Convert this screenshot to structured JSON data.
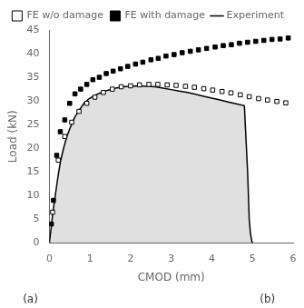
{
  "chart_data": {
    "type": "scatter",
    "xlabel": "CMOD (mm)",
    "ylabel": "Load (kN)",
    "xlim": [
      0,
      6
    ],
    "ylim": [
      0,
      45
    ],
    "xticks": [
      0,
      1,
      2,
      3,
      4,
      5,
      6
    ],
    "yticks": [
      0,
      5,
      10,
      15,
      20,
      25,
      30,
      35,
      40,
      45
    ],
    "grid": false,
    "legend": "top",
    "annotations": [
      "(a)",
      "(b)"
    ],
    "series": [
      {
        "name": "Experiment",
        "type": "line",
        "color": "black",
        "line_style": "solid",
        "x": [
          0.0,
          0.02,
          0.05,
          0.08,
          0.12,
          0.17,
          0.22,
          0.28,
          0.35,
          0.43,
          0.52,
          0.62,
          0.73,
          0.85,
          0.98,
          1.12,
          1.28,
          1.45,
          1.63,
          1.82,
          2.0,
          2.2,
          2.4,
          2.6,
          2.8,
          3.0,
          3.2,
          3.4,
          3.6,
          3.8,
          4.0,
          4.2,
          4.4,
          4.6,
          4.8,
          4.88,
          4.92,
          4.95,
          4.98,
          5.0
        ],
        "values": [
          0.0,
          1.5,
          3.5,
          6.0,
          8.5,
          11.5,
          14.5,
          17.5,
          20.0,
          22.5,
          24.5,
          26.5,
          28.0,
          29.5,
          30.5,
          31.2,
          31.8,
          32.3,
          32.7,
          33.0,
          33.1,
          33.2,
          33.1,
          33.0,
          32.7,
          32.4,
          32.1,
          31.8,
          31.4,
          31.0,
          30.6,
          30.2,
          29.8,
          29.4,
          29.0,
          15.0,
          5.0,
          2.0,
          0.5,
          0.0
        ]
      },
      {
        "name": "FE w/o damage",
        "type": "scatter",
        "color": "black",
        "marker": "square_open",
        "x": [
          0.08,
          0.22,
          0.38,
          0.55,
          0.73,
          0.92,
          1.12,
          1.33,
          1.55,
          1.77,
          2.0,
          2.22,
          2.45,
          2.67,
          2.9,
          3.12,
          3.35,
          3.57,
          3.8,
          4.02,
          4.25,
          4.47,
          4.7,
          4.92,
          5.15,
          5.37,
          5.6,
          5.82
        ],
        "values": [
          6.5,
          17.5,
          22.5,
          25.5,
          27.8,
          29.5,
          30.8,
          31.8,
          32.5,
          33.0,
          33.2,
          33.4,
          33.5,
          33.5,
          33.4,
          33.3,
          33.1,
          32.9,
          32.6,
          32.3,
          32.0,
          31.7,
          31.3,
          30.9,
          30.5,
          30.2,
          29.9,
          29.6
        ]
      },
      {
        "name": "FE with damage",
        "type": "scatter",
        "color": "black",
        "marker": "square",
        "x": [
          0.05,
          0.1,
          0.18,
          0.27,
          0.38,
          0.5,
          0.63,
          0.77,
          0.92,
          1.07,
          1.23,
          1.4,
          1.57,
          1.75,
          1.93,
          2.12,
          2.3,
          2.5,
          2.68,
          2.87,
          3.07,
          3.27,
          3.47,
          3.67,
          3.87,
          4.08,
          4.28,
          4.48,
          4.68,
          4.88,
          5.08,
          5.28,
          5.48,
          5.68,
          5.88
        ],
        "values": [
          4.0,
          9.0,
          18.5,
          23.5,
          26.0,
          29.5,
          31.5,
          32.5,
          33.5,
          34.5,
          35.0,
          35.8,
          36.3,
          36.8,
          37.3,
          37.8,
          38.2,
          38.7,
          39.0,
          39.5,
          39.8,
          40.2,
          40.5,
          40.8,
          41.1,
          41.4,
          41.7,
          41.9,
          42.2,
          42.4,
          42.6,
          42.8,
          43.0,
          43.1,
          43.3
        ]
      }
    ]
  }
}
